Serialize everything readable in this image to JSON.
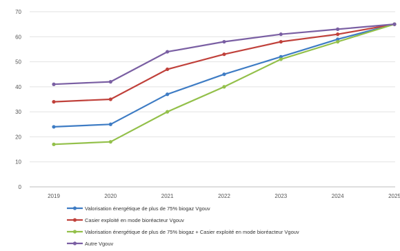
{
  "chart_data": {
    "type": "line",
    "title": "",
    "xlabel": "",
    "ylabel": "",
    "x": [
      2019,
      2020,
      2021,
      2022,
      2023,
      2024,
      2025
    ],
    "x_tick_labels": [
      "2019",
      "2020",
      "2021",
      "2022",
      "2023",
      "2024",
      "2025"
    ],
    "ylim": [
      0,
      70
    ],
    "y_ticks": [
      0,
      10,
      20,
      30,
      40,
      50,
      60,
      70
    ],
    "grid": "horizontal",
    "legend_position": "bottom",
    "series": [
      {
        "name": "Valorisation énergétique de plus de 75% biogaz Vgouv",
        "color": "#3e7cc4",
        "values": [
          24,
          25,
          37,
          45,
          52,
          59,
          65
        ]
      },
      {
        "name": "Casier exploité en mode bioréacteur Vgouv",
        "color": "#c0413b",
        "values": [
          34,
          35,
          47,
          53,
          58,
          61,
          65
        ]
      },
      {
        "name": "Valorisation énergétique de plus de 75% biogaz + Casier exploité en mode bioréacteur Vgouv",
        "color": "#93c04a",
        "values": [
          17,
          18,
          30,
          40,
          51,
          58,
          65
        ]
      },
      {
        "name": "Autre Vgouv",
        "color": "#7a5fa3",
        "values": [
          41,
          42,
          54,
          58,
          61,
          63,
          65
        ]
      }
    ]
  }
}
